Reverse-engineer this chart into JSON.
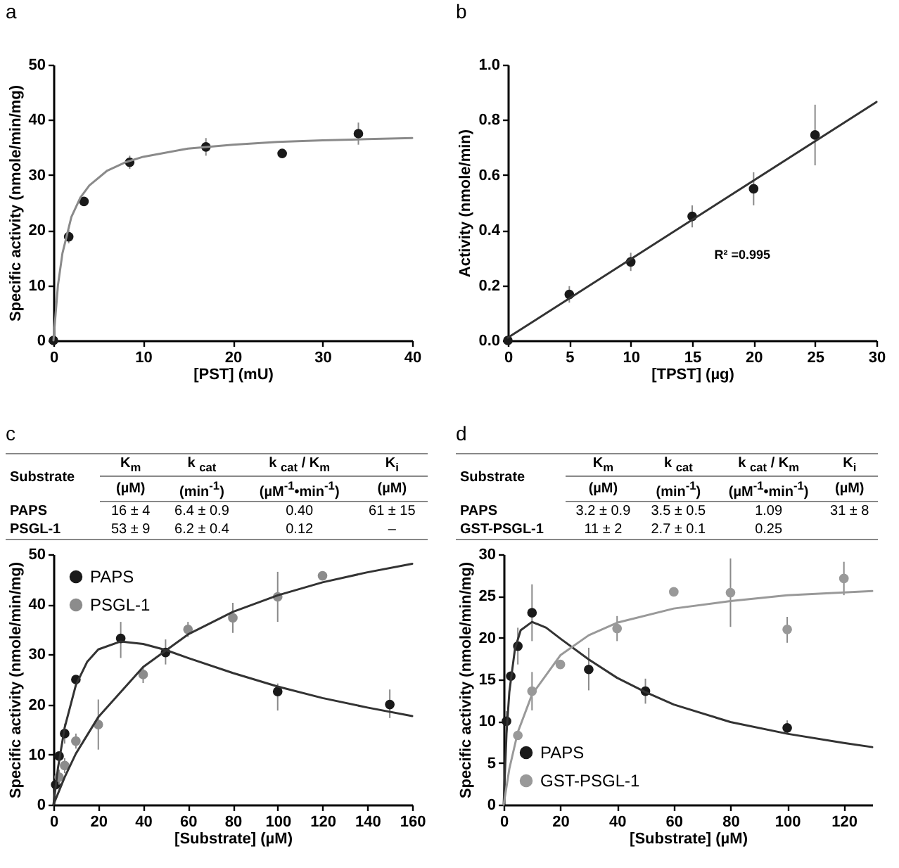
{
  "chart_data": [
    {
      "type": "scatter",
      "title": "a",
      "xlabel": "[PST] (mU)",
      "ylabel": "Specific activity (nmole/min/mg)",
      "xlim": [
        0,
        40
      ],
      "xticks": [
        0,
        10,
        20,
        30,
        40
      ],
      "ylim": [
        0,
        50
      ],
      "yticks": [
        0,
        10,
        20,
        30,
        40,
        50
      ],
      "x": [
        0,
        1.7,
        3.4,
        8.5,
        17,
        25.5,
        34
      ],
      "series": [
        {
          "color": "#1a1a1a",
          "marker": "circle",
          "values": [
            0,
            18.8,
            25.2,
            32.3,
            35.1,
            33.9,
            37.5
          ],
          "errors": [
            null,
            1.2,
            0.5,
            1.2,
            1.6,
            0.6,
            2
          ]
        },
        {
          "type": "line",
          "color": "#8a8a8a",
          "x": [
            0,
            0.5,
            1,
            2,
            3,
            4,
            6,
            8,
            10,
            15,
            20,
            25,
            30,
            35,
            40
          ],
          "values": [
            0,
            10,
            15.8,
            22.4,
            25.9,
            28.1,
            30.8,
            32.3,
            33.3,
            34.8,
            35.5,
            36,
            36.3,
            36.5,
            36.7
          ]
        }
      ]
    },
    {
      "type": "scatter",
      "title": "b",
      "xlabel": "[TPST] (µg)",
      "ylabel": "Activity (nmole/min)",
      "xlim": [
        0,
        30
      ],
      "xticks": [
        0,
        5,
        10,
        15,
        20,
        25,
        30
      ],
      "ylim": [
        0,
        1
      ],
      "yticks": [
        {
          "value": 0,
          "label": "0.0"
        },
        {
          "value": 0.2,
          "label": "0.2"
        },
        {
          "value": 0.4,
          "label": "0.4"
        },
        {
          "value": 0.6,
          "label": "0.6"
        },
        {
          "value": 0.8,
          "label": "0.8"
        },
        {
          "value": 1,
          "label": "1.0"
        }
      ],
      "annotations": [
        "R² =0.995"
      ],
      "x": [
        0,
        5,
        10,
        15,
        20,
        25
      ],
      "series": [
        {
          "color": "#1a1a1a",
          "marker": "circle",
          "values": [
            0,
            0.167,
            0.285,
            0.45,
            0.55,
            0.745
          ],
          "errors": [
            null,
            0.03,
            0.033,
            0.04,
            0.06,
            0.11
          ]
        },
        {
          "type": "line",
          "color": "#333333",
          "x": [
            0,
            30
          ],
          "values": [
            0.01,
            0.865
          ]
        }
      ]
    },
    {
      "type": "scatter",
      "title": "c",
      "xlabel": "[Substrate] (µM)",
      "ylabel": "Specific activity (nmole/min/mg)",
      "xlim": [
        0,
        160
      ],
      "xticks": [
        0,
        20,
        40,
        60,
        80,
        100,
        120,
        140,
        160
      ],
      "ylim": [
        0,
        50
      ],
      "yticks": [
        0,
        10,
        20,
        30,
        40,
        50
      ],
      "legend": "top left",
      "annotations": [
        "Substrate",
        "K$_{m}$",
        "k $_{cat}$",
        "k $_{cat}$ / K$_{m}$",
        "K$_{i}$",
        "(µM)",
        "(min$^{-1}$)",
        "(µM$^{-1}$•min$^{-1}$)",
        "(µM)",
        "PAPS",
        "16 ± 4",
        "6.4 ± 0.9",
        "0.40",
        "61 ± 15",
        "PSGL-1",
        "53 ± 9",
        "6.2 ± 0.4",
        "0.12",
        "–"
      ],
      "series": [
        {
          "name": "PAPS",
          "color": "#1a1a1a",
          "marker": "circle",
          "x": [
            1,
            2.5,
            5,
            10,
            30,
            50,
            100,
            150
          ],
          "values": [
            4,
            9.7,
            14.2,
            25,
            33.2,
            30.4,
            22.6,
            20
          ],
          "errors": [
            null,
            null,
            2,
            null,
            [
              29.3,
              36.5
            ],
            [
              28,
              33
            ],
            [
              18.8,
              24.2
            ],
            [
              17.3,
              23
            ]
          ]
        },
        {
          "name": "PSGL-1",
          "color": "#8c8c8c",
          "marker": "circle",
          "x": [
            2.5,
            5,
            10,
            20,
            40,
            60,
            80,
            100,
            120
          ],
          "values": [
            5.5,
            7.8,
            12.7,
            16,
            26,
            35,
            37.3,
            41.5,
            45.7
          ],
          "errors": [
            1.5,
            1.5,
            1.5,
            [
              11,
              21
            ],
            [
              24.3,
              27.5
            ],
            [
              33.5,
              36.5
            ],
            [
              34.3,
              40.3
            ],
            [
              36.5,
              46.5
            ],
            null
          ]
        },
        {
          "type": "line",
          "color": "#333333",
          "x": [
            0,
            2,
            5,
            10,
            15,
            20,
            30,
            40,
            50,
            60,
            80,
            100,
            120,
            140,
            160
          ],
          "values": [
            0,
            7.3,
            15.4,
            23.9,
            28.5,
            31,
            32.6,
            32.1,
            30.9,
            29.3,
            26.3,
            23.6,
            21.3,
            19.4,
            17.7
          ]
        },
        {
          "type": "line",
          "color": "#333333",
          "x": [
            0,
            5,
            10,
            20,
            40,
            60,
            80,
            100,
            120,
            140,
            160
          ],
          "values": [
            0,
            5.5,
            10.2,
            17.5,
            27.5,
            34,
            38.5,
            41.8,
            44.4,
            46.4,
            48.1
          ]
        }
      ]
    },
    {
      "type": "scatter",
      "title": "d",
      "xlabel": "[Substrate] (µM)",
      "ylabel": "Specific activity (nmole/min/mg)",
      "xlim": [
        0,
        130
      ],
      "xticks": [
        0,
        20,
        40,
        60,
        80,
        100,
        120
      ],
      "ylim": [
        0,
        30
      ],
      "yticks": [
        0,
        5,
        10,
        15,
        20,
        25,
        30
      ],
      "legend": "bottom left",
      "annotations": [
        "Substrate",
        "K$_{m}$",
        "k $_{cat}$",
        "k $_{cat}$ / K$_{m}$",
        "K$_{i}$",
        "(µM)",
        "(min$^{-1}$)",
        "(µM$^{-1}$•min$^{-1}$)",
        "(µM)",
        "PAPS",
        "3.2 ± 0.9",
        "3.5 ± 0.5",
        "1.09",
        "31 ± 8",
        "GST-PSGL-1",
        "11 ± 2",
        "2.7 ± 0.1",
        "0.25"
      ],
      "series": [
        {
          "name": "PAPS",
          "color": "#1a1a1a",
          "marker": "circle",
          "x": [
            1,
            2.5,
            5,
            10,
            30,
            50,
            100
          ],
          "values": [
            10,
            15.4,
            19,
            23,
            16.2,
            13.6,
            9.2
          ],
          "errors": [
            1.2,
            null,
            [
              16.8,
              21.2
            ],
            [
              19.6,
              26.4
            ],
            [
              13.7,
              18.8
            ],
            [
              12.1,
              15.1
            ],
            [
              8.5,
              10.1
            ]
          ]
        },
        {
          "name": "GST-PSGL-1",
          "color": "#999999",
          "marker": "circle",
          "x": [
            5,
            10,
            20,
            40,
            60,
            80,
            100,
            120
          ],
          "values": [
            8.3,
            13.6,
            16.8,
            21.1,
            25.5,
            25.4,
            21,
            27.1
          ],
          "errors": [
            null,
            [
              11.3,
              15.9
            ],
            null,
            [
              19.6,
              22.6
            ],
            null,
            [
              21.3,
              29.5
            ],
            [
              19.4,
              22.5
            ],
            [
              25.1,
              29.1
            ]
          ]
        },
        {
          "type": "line",
          "color": "#333333",
          "x": [
            0,
            1,
            2,
            4,
            6,
            10,
            15,
            20,
            30,
            40,
            50,
            60,
            80,
            100,
            120,
            130
          ],
          "values": [
            0,
            8.5,
            13.5,
            18.7,
            20.9,
            21.9,
            21.2,
            19.9,
            17.4,
            15.2,
            13.5,
            12,
            9.9,
            8.5,
            7.4,
            6.9
          ]
        },
        {
          "type": "line",
          "color": "#999999",
          "x": [
            0,
            2,
            5,
            10,
            20,
            30,
            40,
            60,
            80,
            100,
            130
          ],
          "values": [
            0,
            4.3,
            8.7,
            13.2,
            17.9,
            20.3,
            21.8,
            23.5,
            24.4,
            25.1,
            25.6
          ]
        }
      ]
    }
  ]
}
